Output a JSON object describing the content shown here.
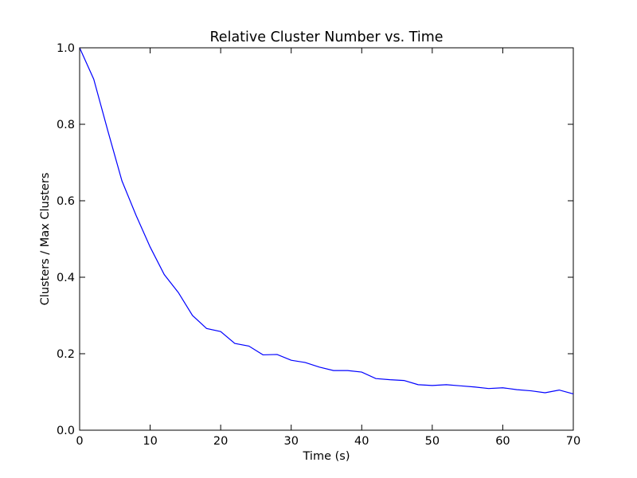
{
  "chart_data": {
    "type": "line",
    "title": "Relative Cluster Number  vs. Time",
    "xlabel": "Time (s)",
    "ylabel": "Clusters / Max Clusters",
    "xlim": [
      0,
      70
    ],
    "ylim": [
      0.0,
      1.0
    ],
    "xticks": [
      "0",
      "10",
      "20",
      "30",
      "40",
      "50",
      "60",
      "70"
    ],
    "yticks": [
      "0.0",
      "0.2",
      "0.4",
      "0.6",
      "0.8",
      "1.0"
    ],
    "grid": false,
    "color": "#0000ff",
    "x": [
      0,
      2,
      4,
      6,
      8,
      10,
      12,
      14,
      16,
      18,
      20,
      22,
      24,
      26,
      28,
      30,
      32,
      34,
      36,
      38,
      40,
      42,
      44,
      46,
      48,
      50,
      52,
      54,
      56,
      58,
      60,
      62,
      64,
      66,
      68,
      70
    ],
    "y": [
      1.0,
      0.918,
      0.783,
      0.652,
      0.562,
      0.479,
      0.407,
      0.36,
      0.3,
      0.266,
      0.258,
      0.227,
      0.22,
      0.197,
      0.198,
      0.183,
      0.177,
      0.165,
      0.156,
      0.156,
      0.152,
      0.135,
      0.132,
      0.13,
      0.119,
      0.117,
      0.119,
      0.116,
      0.113,
      0.109,
      0.111,
      0.106,
      0.103,
      0.098,
      0.105,
      0.095
    ]
  }
}
